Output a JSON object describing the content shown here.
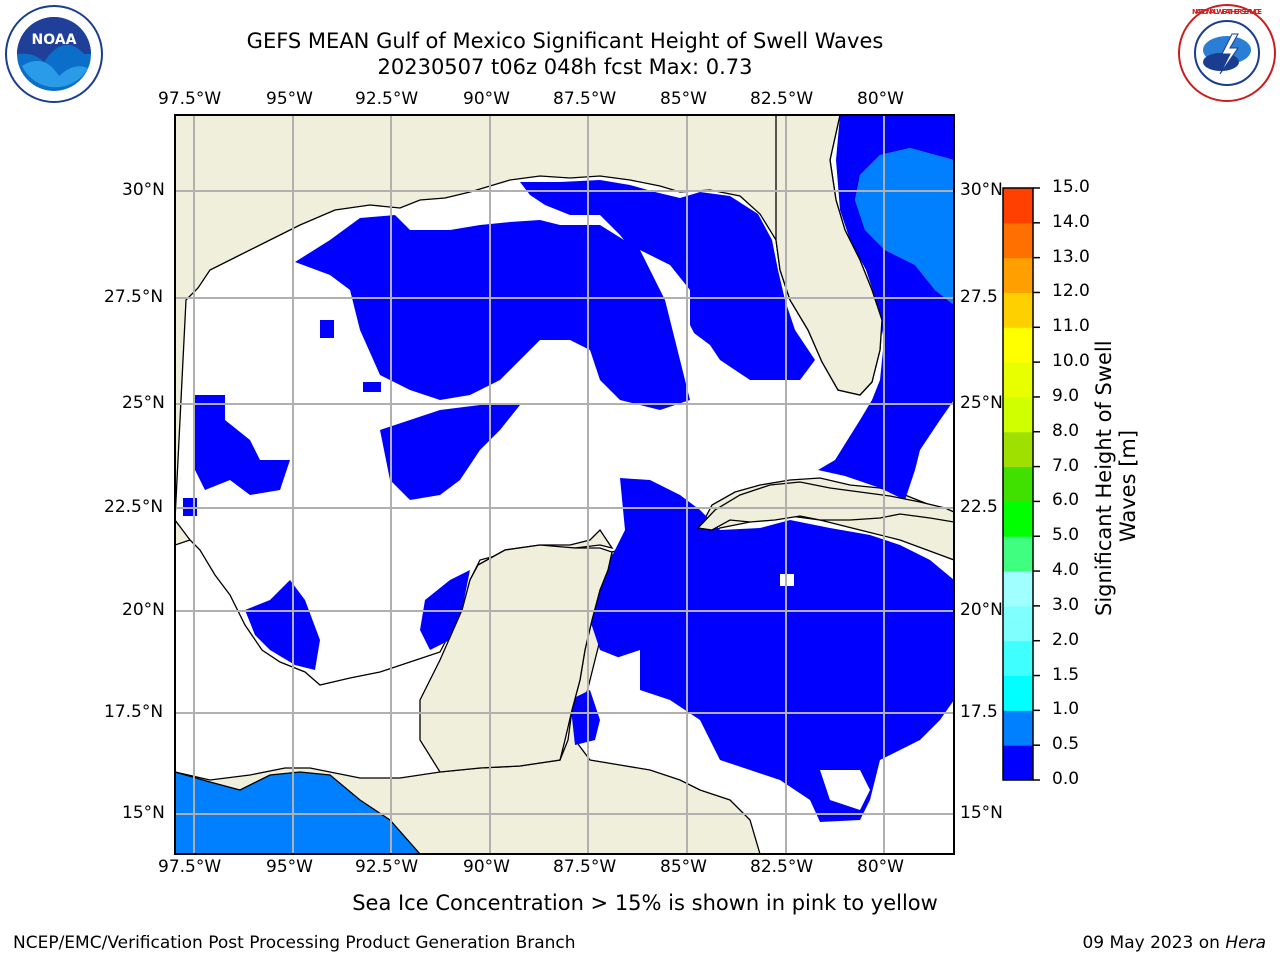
{
  "header": {
    "title_line1": "GEFS MEAN Gulf of Mexico Significant Height of Swell Waves",
    "title_line2": "20230507 t06z 048h fcst   Max: 0.73"
  },
  "logos": {
    "left": {
      "name": "NOAA",
      "ring_text": "NATIONAL OCEANIC AND ATMOSPHERIC ADMINISTRATION · U.S. DEPARTMENT OF COMMERCE"
    },
    "right": {
      "name": "NATIONAL WEATHER SERVICE"
    }
  },
  "map": {
    "lon_labels": [
      "97.5°W",
      "95°W",
      "92.5°W",
      "90°W",
      "87.5°W",
      "85°W",
      "82.5°W",
      "80°W"
    ],
    "lat_labels": [
      "30°N",
      "27.5°N",
      "25°N",
      "22.5°N",
      "20°N",
      "17.5°N",
      "15°N"
    ],
    "right_lat_labels": [
      "30°N",
      "27.5",
      "25°N",
      "22.5",
      "20°N",
      "17.5",
      "15°N"
    ],
    "colors": {
      "land": "#efefdc",
      "water_low": "#0000ff",
      "water_mid": "#0080ff",
      "grid": "#b0b0b0"
    }
  },
  "colorbar": {
    "label_line1": "Significant Height of Swell",
    "label_line2": "Waves [m]",
    "ticks": [
      "0.0",
      "0.5",
      "1.0",
      "1.5",
      "2.0",
      "3.0",
      "4.0",
      "5.0",
      "6.0",
      "7.0",
      "8.0",
      "9.0",
      "10.0",
      "11.0",
      "12.0",
      "13.0",
      "14.0",
      "15.0"
    ],
    "colors": [
      "#0000ff",
      "#0080ff",
      "#00ffff",
      "#40ffff",
      "#80ffff",
      "#a0ffff",
      "#40ff80",
      "#00ff00",
      "#40e000",
      "#a0e000",
      "#d0ff00",
      "#e8ff00",
      "#ffff00",
      "#ffd000",
      "#ffa000",
      "#ff7000",
      "#ff4000",
      "#ff0000"
    ]
  },
  "caption": "Sea Ice Concentration > 15% is shown in pink to yellow",
  "footer": {
    "left": "NCEP/EMC/Verification Post Processing Product Generation Branch",
    "date": "09 May 2023",
    "on": "on",
    "host": "Hera"
  }
}
